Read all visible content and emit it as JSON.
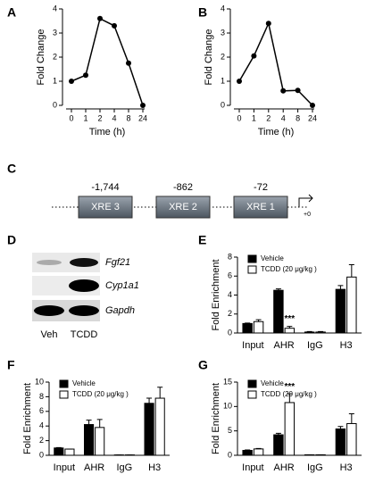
{
  "chart_data": [
    {
      "type": "line",
      "panel": "A",
      "xlabel": "Time (h)",
      "ylabel": "Fold Change",
      "categories": [
        "0",
        "1",
        "2",
        "4",
        "8",
        "24"
      ],
      "values": [
        1,
        1.25,
        3.6,
        3.3,
        1.75,
        0
      ],
      "color": "#000000",
      "ylim": [
        0,
        4
      ],
      "yticks": [
        0,
        1,
        2,
        3,
        4
      ]
    },
    {
      "type": "line",
      "panel": "B",
      "xlabel": "Time (h)",
      "ylabel": "Fold Change",
      "categories": [
        "0",
        "1",
        "2",
        "4",
        "8",
        "24"
      ],
      "values": [
        1,
        2.05,
        3.4,
        0.6,
        0.62,
        0
      ],
      "color": "#000000",
      "ylim": [
        0,
        4
      ],
      "yticks": [
        0,
        1,
        2,
        3,
        4
      ]
    },
    {
      "type": "bar",
      "panel": "E",
      "ylabel": "Fold Enrichment",
      "legend": "upper left",
      "categories": [
        "Input",
        "AHR",
        "IgG",
        "H3"
      ],
      "ylim": [
        0,
        8
      ],
      "yticks": [
        0,
        2,
        4,
        6,
        8
      ],
      "series": [
        {
          "name": "Vehicle",
          "color": "#000000",
          "values": [
            1,
            4.5,
            0.1,
            4.6
          ],
          "errors": [
            0.05,
            0.15,
            0.05,
            0.4
          ]
        },
        {
          "name": "TCDD (20 μg/kg )",
          "color": "#ffffff",
          "values": [
            1.2,
            0.5,
            0.1,
            5.9
          ],
          "errors": [
            0.2,
            0.2,
            0.05,
            1.3
          ],
          "annotations": [
            null,
            "***",
            null,
            null
          ]
        }
      ]
    },
    {
      "type": "bar",
      "panel": "F",
      "ylabel": "Fold Enrichment",
      "legend": "upper left",
      "categories": [
        "Input",
        "AHR",
        "IgG",
        "H3"
      ],
      "ylim": [
        0,
        10
      ],
      "yticks": [
        0,
        2,
        4,
        6,
        8,
        10
      ],
      "series": [
        {
          "name": "Vehicle",
          "color": "#000000",
          "values": [
            1,
            4.2,
            0.05,
            7.1
          ],
          "errors": [
            0.05,
            0.6,
            0,
            0.7
          ]
        },
        {
          "name": "TCDD (20 μg/kg )",
          "color": "#ffffff",
          "values": [
            0.85,
            3.8,
            0.05,
            7.8
          ],
          "errors": [
            0,
            1.1,
            0,
            1.5
          ]
        }
      ]
    },
    {
      "type": "bar",
      "panel": "G",
      "ylabel": "Fold Enrichment",
      "legend": "upper left",
      "categories": [
        "Input",
        "AHR",
        "IgG",
        "H3"
      ],
      "ylim": [
        0,
        15
      ],
      "yticks": [
        0,
        5,
        10,
        15
      ],
      "series": [
        {
          "name": "Vehicle",
          "color": "#000000",
          "values": [
            1,
            4.2,
            0.1,
            5.4
          ],
          "errors": [
            0.1,
            0.3,
            0,
            0.5
          ]
        },
        {
          "name": "TCDD (20 μg/kg )",
          "color": "#ffffff",
          "values": [
            1.3,
            10.8,
            0.1,
            6.5
          ],
          "errors": [
            0.1,
            1.8,
            0,
            2.0
          ],
          "annotations": [
            null,
            "***",
            null,
            null
          ]
        }
      ]
    }
  ],
  "diagram": {
    "panel": "C",
    "elements": [
      {
        "position": "-1,744",
        "label": "XRE 3"
      },
      {
        "position": "-862",
        "label": "XRE 2"
      },
      {
        "position": "-72",
        "label": "XRE 1"
      }
    ],
    "start": "+0"
  },
  "gel": {
    "panel": "D",
    "bands": [
      "Fgf21",
      "Cyp1a1",
      "Gapdh"
    ],
    "lanes": [
      "Veh",
      "TCDD"
    ]
  }
}
